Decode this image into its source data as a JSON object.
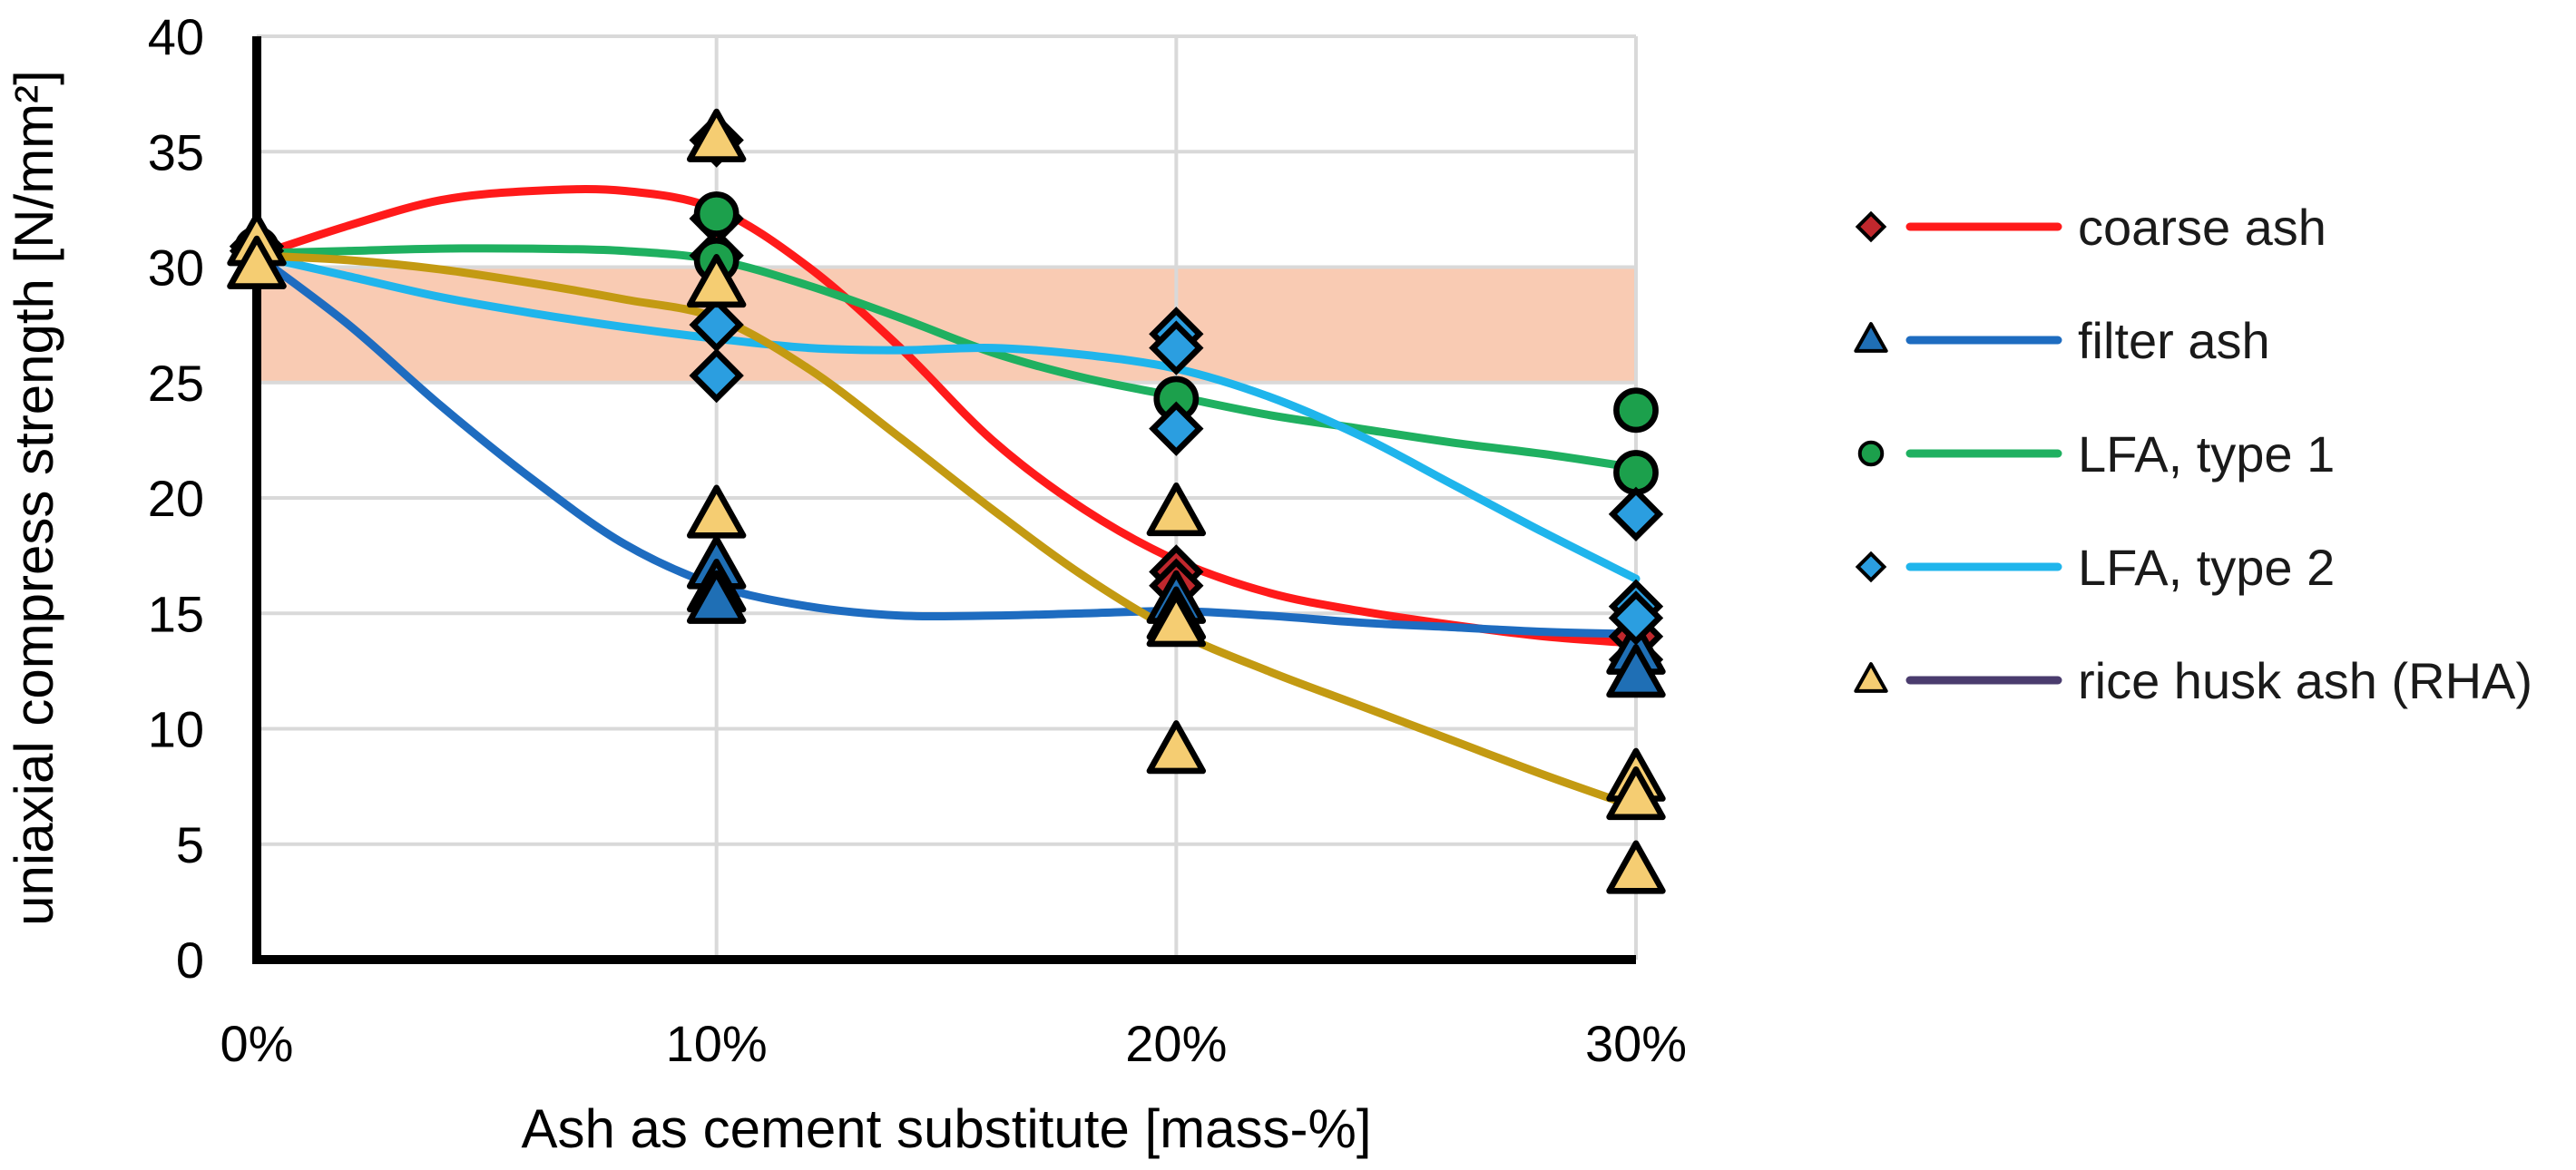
{
  "chart_data": {
    "type": "scatter",
    "title": "",
    "xlabel": "Ash as cement substitute [mass-%]",
    "ylabel": "uniaxial compress strength [N/mm²]",
    "x_categories": [
      "0%",
      "10%",
      "20%",
      "30%"
    ],
    "x_values": [
      0,
      10,
      20,
      30
    ],
    "xlim": [
      0,
      30
    ],
    "ylim": [
      0,
      40
    ],
    "y_ticks": [
      "0",
      "5",
      "10",
      "15",
      "20",
      "25",
      "30",
      "35",
      "40"
    ],
    "grid": true,
    "reference_band": {
      "from": 25,
      "to": 30,
      "color": "#f9cbb3"
    },
    "legend_position": "right",
    "series": [
      {
        "name": "coarse ash",
        "marker": "diamond",
        "marker_color": "#c0282d",
        "line_color": "#ff1a1a",
        "points": [
          [
            0,
            30.7
          ],
          [
            10,
            35.5
          ],
          [
            10,
            32.1
          ],
          [
            10,
            30.5
          ],
          [
            20,
            16.8
          ],
          [
            20,
            16.2
          ],
          [
            30,
            14.0
          ],
          [
            30,
            13.0
          ]
        ],
        "curve": [
          [
            0,
            30.5
          ],
          [
            2,
            31.8
          ],
          [
            4,
            32.9
          ],
          [
            6,
            33.3
          ],
          [
            8,
            33.3
          ],
          [
            10,
            32.5
          ],
          [
            12,
            30.0
          ],
          [
            14,
            26.5
          ],
          [
            16,
            22.5
          ],
          [
            18,
            19.5
          ],
          [
            20,
            17.3
          ],
          [
            22,
            15.9
          ],
          [
            24,
            15.1
          ],
          [
            26,
            14.5
          ],
          [
            28,
            14.0
          ],
          [
            30,
            13.7
          ]
        ]
      },
      {
        "name": "filter ash",
        "marker": "triangle",
        "marker_color": "#1f6fb5",
        "line_color": "#1e6cc0",
        "points": [
          [
            0,
            30.0
          ],
          [
            10,
            17.0
          ],
          [
            10,
            16.0
          ],
          [
            10,
            15.5
          ],
          [
            20,
            15.5
          ],
          [
            20,
            14.8
          ],
          [
            30,
            13.3
          ],
          [
            30,
            12.3
          ]
        ],
        "curve": [
          [
            0,
            30.5
          ],
          [
            2,
            27.5
          ],
          [
            4,
            24.0
          ],
          [
            6,
            20.8
          ],
          [
            8,
            18.0
          ],
          [
            10,
            16.2
          ],
          [
            12,
            15.3
          ],
          [
            14,
            14.9
          ],
          [
            16,
            14.9
          ],
          [
            18,
            15.0
          ],
          [
            20,
            15.1
          ],
          [
            22,
            14.9
          ],
          [
            24,
            14.6
          ],
          [
            26,
            14.4
          ],
          [
            28,
            14.2
          ],
          [
            30,
            14.1
          ]
        ]
      },
      {
        "name": "LFA, type 1",
        "marker": "circle",
        "marker_color": "#1ca04c",
        "line_color": "#1fb060",
        "points": [
          [
            0,
            30.8
          ],
          [
            10,
            32.3
          ],
          [
            10,
            30.3
          ],
          [
            20,
            24.3
          ],
          [
            30,
            23.8
          ],
          [
            30,
            21.1
          ]
        ],
        "curve": [
          [
            0,
            30.6
          ],
          [
            2,
            30.7
          ],
          [
            4,
            30.8
          ],
          [
            6,
            30.8
          ],
          [
            8,
            30.7
          ],
          [
            10,
            30.3
          ],
          [
            12,
            29.2
          ],
          [
            14,
            27.8
          ],
          [
            16,
            26.3
          ],
          [
            18,
            25.2
          ],
          [
            20,
            24.4
          ],
          [
            22,
            23.6
          ],
          [
            24,
            23.0
          ],
          [
            26,
            22.4
          ],
          [
            28,
            21.9
          ],
          [
            30,
            21.3
          ]
        ]
      },
      {
        "name": "LFA, type 2",
        "marker": "diamond",
        "marker_color": "#2b9ee0",
        "line_color": "#1fb5ec",
        "points": [
          [
            0,
            30.9
          ],
          [
            10,
            27.5
          ],
          [
            10,
            25.3
          ],
          [
            20,
            27.1
          ],
          [
            20,
            26.5
          ],
          [
            20,
            23.0
          ],
          [
            30,
            19.3
          ],
          [
            30,
            15.3
          ],
          [
            30,
            14.8
          ]
        ],
        "curve": [
          [
            0,
            30.5
          ],
          [
            2,
            29.6
          ],
          [
            4,
            28.7
          ],
          [
            6,
            28.0
          ],
          [
            8,
            27.4
          ],
          [
            10,
            26.9
          ],
          [
            12,
            26.5
          ],
          [
            14,
            26.4
          ],
          [
            16,
            26.5
          ],
          [
            18,
            26.2
          ],
          [
            20,
            25.6
          ],
          [
            22,
            24.4
          ],
          [
            24,
            22.7
          ],
          [
            26,
            20.6
          ],
          [
            28,
            18.5
          ],
          [
            30,
            16.5
          ]
        ]
      },
      {
        "name": "rice husk ash (RHA)",
        "marker": "triangle",
        "marker_color": "#f5cd72",
        "line_color": "#c39a12",
        "legend_line_color": "#4a3c6e",
        "points": [
          [
            0,
            31.0
          ],
          [
            0,
            30.0
          ],
          [
            10,
            35.5
          ],
          [
            10,
            29.2
          ],
          [
            10,
            19.2
          ],
          [
            20,
            19.3
          ],
          [
            20,
            14.5
          ],
          [
            20,
            9.0
          ],
          [
            30,
            7.8
          ],
          [
            30,
            7.0
          ],
          [
            30,
            3.8
          ]
        ],
        "curve": [
          [
            0,
            30.5
          ],
          [
            2,
            30.3
          ],
          [
            4,
            29.9
          ],
          [
            6,
            29.3
          ],
          [
            8,
            28.6
          ],
          [
            10,
            27.8
          ],
          [
            12,
            25.6
          ],
          [
            14,
            22.6
          ],
          [
            16,
            19.5
          ],
          [
            18,
            16.6
          ],
          [
            20,
            14.2
          ],
          [
            22,
            12.5
          ],
          [
            24,
            11.0
          ],
          [
            26,
            9.5
          ],
          [
            28,
            8.0
          ],
          [
            30,
            6.6
          ]
        ]
      }
    ]
  }
}
